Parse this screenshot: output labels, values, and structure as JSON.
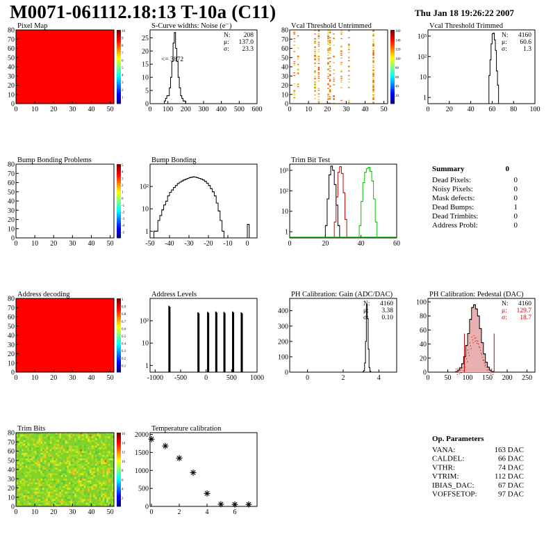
{
  "page": {
    "title": "M0071-061112.18:13 T-10a (C11)",
    "date": "Thu Jan 18 19:26:22 2007"
  },
  "chart_data": [
    {
      "type": "heatmap",
      "title": "Pixel Map",
      "xlim": [
        0,
        52
      ],
      "ylim": [
        0,
        80
      ],
      "xticks": [
        "0",
        "10",
        "20",
        "30",
        "40",
        "50"
      ],
      "yticks": [
        "0",
        "10",
        "20",
        "30",
        "40",
        "50",
        "60",
        "70",
        "80"
      ],
      "fill": "uniform",
      "fill_color": "#ff0000",
      "colorbar": [
        "1",
        "2",
        "3",
        "4",
        "5",
        "6",
        "7",
        "8",
        "9",
        "10"
      ]
    },
    {
      "type": "bar",
      "title": "S-Curve widths: Noise (e⁻)",
      "xlim": [
        0,
        600
      ],
      "ylim": [
        0,
        28
      ],
      "log": false,
      "xticks": [
        "0",
        "100",
        "200",
        "300",
        "400",
        "500",
        "600"
      ],
      "yticks": [
        "0",
        "5",
        "10",
        "15",
        "20",
        "25"
      ],
      "annotation": "<= 3872",
      "color": "#000000",
      "stats": [
        {
          "label": "N:",
          "value": "208"
        },
        {
          "label": "μ:",
          "value": "137.0"
        },
        {
          "label": "σ:",
          "value": "23.3"
        }
      ],
      "series": [
        {
          "bin_start": 80,
          "bin_width": 7,
          "values": [
            1,
            2,
            3,
            3,
            6,
            10,
            16,
            23,
            27,
            21,
            16,
            10,
            6,
            3,
            2,
            1,
            1
          ]
        }
      ]
    },
    {
      "type": "heatmap",
      "title": "Vcal Threshold Untrimmed",
      "xlim": [
        0,
        52
      ],
      "ylim": [
        0,
        80
      ],
      "xticks": [
        "0",
        "10",
        "20",
        "30",
        "40",
        "50"
      ],
      "yticks": [
        "0",
        "10",
        "20",
        "30",
        "40",
        "50",
        "60",
        "70",
        "80"
      ],
      "fill": "sparse",
      "fill_color": "#ffffff",
      "colorbar": [
        "20",
        "40",
        "60",
        "80",
        "100",
        "120",
        "140",
        "160"
      ]
    },
    {
      "type": "bar",
      "title": "Vcal Threshold Trimmed",
      "xlim": [
        0,
        100
      ],
      "ylim": [
        0.5,
        2000
      ],
      "log": true,
      "xticks": [
        "0",
        "20",
        "40",
        "60",
        "80",
        "100"
      ],
      "yticks": [
        "1",
        "10",
        "10²",
        "10³"
      ],
      "ytick_values": [
        1,
        10,
        100,
        1000
      ],
      "color": "#000000",
      "stats": [
        {
          "label": "N:",
          "value": "4160"
        },
        {
          "label": "μ:",
          "value": "60.6"
        },
        {
          "label": "σ:",
          "value": "1.3"
        }
      ],
      "series": [
        {
          "bin_start": 56,
          "bin_width": 1,
          "values": [
            0,
            12,
            70,
            420,
            1300,
            1400,
            650,
            200,
            20,
            4,
            0
          ]
        }
      ]
    },
    {
      "type": "heatmap",
      "title": "Bump Bonding Problems",
      "xlim": [
        0,
        52
      ],
      "ylim": [
        0,
        80
      ],
      "xticks": [
        "0",
        "10",
        "20",
        "30",
        "40",
        "50"
      ],
      "yticks": [
        "0",
        "10",
        "20",
        "30",
        "40",
        "50",
        "60",
        "70",
        "80"
      ],
      "fill": "uniform",
      "fill_color": "#ffffff",
      "colorbar": [
        "-5",
        "-4",
        "-3",
        "-2",
        "-1",
        "0",
        "1",
        "2",
        "3",
        "4",
        "5"
      ]
    },
    {
      "type": "bar",
      "title": "Bump Bonding",
      "xlim": [
        -50,
        5
      ],
      "ylim": [
        0.5,
        1000
      ],
      "log": true,
      "xticks": [
        "-50",
        "-40",
        "-30",
        "-20",
        "-10",
        "0"
      ],
      "yticks": [
        "1",
        "10",
        "10²"
      ],
      "ytick_values": [
        1,
        10,
        100
      ],
      "color": "#000000",
      "series": [
        {
          "bin_start": -48,
          "bin_width": 1,
          "values": [
            1,
            1,
            3,
            5,
            9,
            15,
            22,
            38,
            55,
            70,
            90,
            110,
            135,
            155,
            175,
            195,
            210,
            230,
            250,
            260,
            270,
            262,
            248,
            230,
            215,
            195,
            170,
            140,
            110,
            80,
            58,
            38,
            18,
            8,
            3,
            1
          ]
        },
        {
          "bin_start": 0,
          "bin_width": 1,
          "values": [
            2
          ]
        }
      ]
    },
    {
      "type": "bar",
      "title": "Trim Bit Test",
      "xlim": [
        0,
        60
      ],
      "ylim": [
        0.5,
        2000
      ],
      "log": true,
      "xticks": [
        "0",
        "20",
        "40",
        "60"
      ],
      "yticks": [
        "1",
        "10",
        "10²",
        "10³"
      ],
      "ytick_values": [
        1,
        10,
        100,
        1000
      ],
      "series": [
        {
          "color": "#000000",
          "bin_start": 20,
          "bin_width": 1,
          "values": [
            2,
            40,
            600,
            1600,
            1000,
            200,
            20,
            2
          ]
        },
        {
          "color": "#cc0000",
          "bin_start": 25,
          "bin_width": 1,
          "values": [
            3,
            50,
            800,
            1500,
            700,
            80,
            4
          ]
        },
        {
          "color": "#00c000",
          "bin_start": 39,
          "bin_width": 1,
          "values": [
            2,
            30,
            250,
            800,
            1200,
            1400,
            900,
            300,
            40,
            3
          ]
        },
        {
          "color": "#00c000",
          "baseline": true,
          "value": 0.5
        }
      ]
    },
    {
      "type": "table",
      "title": "Summary",
      "total": "0",
      "rows": [
        [
          "Dead Pixels:",
          "0"
        ],
        [
          "Noisy Pixels:",
          "0"
        ],
        [
          "Mask defects:",
          "0"
        ],
        [
          "Dead Bumps:",
          "1"
        ],
        [
          "Dead Trimbits:",
          "0"
        ],
        [
          "Address Probl:",
          "0"
        ]
      ]
    },
    {
      "type": "heatmap",
      "title": "Address decoding",
      "xlim": [
        0,
        52
      ],
      "ylim": [
        0,
        80
      ],
      "xticks": [
        "0",
        "10",
        "20",
        "30",
        "40",
        "50"
      ],
      "yticks": [
        "0",
        "10",
        "20",
        "30",
        "40",
        "50",
        "60",
        "70",
        "80"
      ],
      "fill": "uniform",
      "fill_color": "#ff0000",
      "colorbar": [
        "0.1",
        "0.2",
        "0.3",
        "0.4",
        "0.5",
        "0.6",
        "0.7",
        "0.8",
        "0.9",
        "1"
      ]
    },
    {
      "type": "bar",
      "title": "Address Levels",
      "xlim": [
        -1100,
        1000
      ],
      "ylim": [
        0.5,
        1000
      ],
      "log": true,
      "xticks": [
        "-1000",
        "-500",
        "0",
        "500",
        "1000"
      ],
      "yticks": [
        "1",
        "10",
        "10²"
      ],
      "ytick_values": [
        1,
        10,
        100
      ],
      "color": "#000000",
      "spikes": [
        {
          "x": -720,
          "h": 450
        },
        {
          "x": -150,
          "h": 230
        },
        {
          "x": 40,
          "h": 240
        },
        {
          "x": 200,
          "h": 250
        },
        {
          "x": 360,
          "h": 240
        },
        {
          "x": 530,
          "h": 250
        },
        {
          "x": 700,
          "h": 230
        }
      ]
    },
    {
      "type": "bar",
      "title": "PH Calibration: Gain (ADC/DAC)",
      "xlim": [
        -1,
        5
      ],
      "ylim": [
        0,
        480
      ],
      "log": false,
      "xticks": [
        "0",
        "2",
        "4"
      ],
      "yticks": [
        "0",
        "100",
        "200",
        "300",
        "400"
      ],
      "color": "#000000",
      "stats": [
        {
          "label": "N:",
          "value": "4160"
        },
        {
          "label": "μ:",
          "value": "3.38"
        },
        {
          "label": "σ:",
          "value": "0.10"
        }
      ],
      "series": [
        {
          "bin_start": 3.1,
          "bin_width": 0.05,
          "values": [
            2,
            10,
            60,
            200,
            440,
            350,
            150,
            30,
            5
          ]
        }
      ]
    },
    {
      "type": "bar",
      "title": "PH Calibration: Pedestal (DAC)",
      "xlim": [
        0,
        270
      ],
      "ylim": [
        0,
        105
      ],
      "log": false,
      "xticks": [
        "0",
        "50",
        "100",
        "150",
        "200",
        "250"
      ],
      "yticks": [
        "0",
        "20",
        "40",
        "60",
        "80",
        "100"
      ],
      "color": "#000000",
      "fill_color": "#e8b0b0",
      "stats": [
        {
          "label": "N:",
          "value": "4160"
        },
        {
          "label": "μ:",
          "value": "129.7",
          "color": "#cc0000"
        },
        {
          "label": "σ:",
          "value": "18.7",
          "color": "#cc0000"
        }
      ],
      "markers": [
        92,
        167
      ],
      "marker_color": "#cc0000",
      "series": [
        {
          "bin_start": 70,
          "bin_width": 5,
          "values": [
            1,
            3,
            6,
            12,
            22,
            38,
            55,
            75,
            92,
            96,
            90,
            80,
            62,
            42,
            26,
            14,
            7,
            3,
            1
          ]
        }
      ]
    },
    {
      "type": "heatmap",
      "title": "Trim Bits",
      "xlim": [
        0,
        52
      ],
      "ylim": [
        0,
        80
      ],
      "xticks": [
        "0",
        "10",
        "20",
        "30",
        "40",
        "50"
      ],
      "yticks": [
        "0",
        "10",
        "20",
        "30",
        "40",
        "50",
        "60",
        "70",
        "80"
      ],
      "fill": "noise",
      "fill_color": "#7fd32a",
      "colorbar": [
        "2",
        "4",
        "6",
        "8",
        "10",
        "12",
        "14",
        "16"
      ]
    },
    {
      "type": "scatter",
      "title": "Temperature calibration",
      "xlim": [
        -0.1,
        7.6
      ],
      "ylim": [
        0,
        2050
      ],
      "log": false,
      "xticks": [
        "0",
        "2",
        "4",
        "6"
      ],
      "yticks": [
        "0",
        "500",
        "1000",
        "1500",
        "2000"
      ],
      "x": [
        0,
        1,
        2,
        3,
        4,
        5,
        6,
        7
      ],
      "y": [
        1870,
        1680,
        1340,
        940,
        360,
        60,
        55,
        55
      ]
    },
    {
      "type": "table",
      "title": "Op. Parameters",
      "rows": [
        [
          "VANA:",
          "163 DAC"
        ],
        [
          "CALDEL:",
          "66 DAC"
        ],
        [
          "VTHR:",
          "74 DAC"
        ],
        [
          "VTRIM:",
          "112 DAC"
        ],
        [
          "IBIAS_DAC:",
          "67 DAC"
        ],
        [
          "VOFFSETOP:",
          "97 DAC"
        ]
      ]
    }
  ]
}
